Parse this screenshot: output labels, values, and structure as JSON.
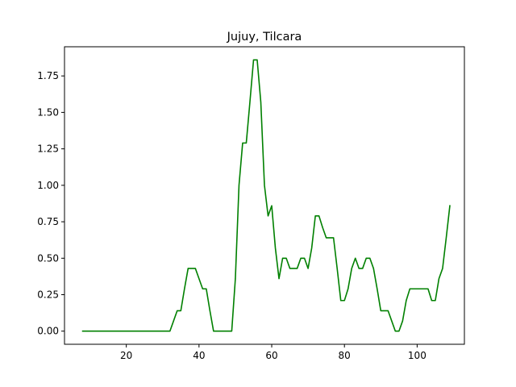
{
  "chart_data": {
    "type": "line",
    "title": "Jujuy, Tilcara",
    "xlabel": "",
    "ylabel": "",
    "xlim": [
      3,
      113
    ],
    "ylim": [
      -0.09,
      1.95
    ],
    "x_ticks": [
      20,
      40,
      60,
      80,
      100
    ],
    "y_ticks": [
      0.0,
      0.25,
      0.5,
      0.75,
      1.0,
      1.25,
      1.5,
      1.75
    ],
    "y_tick_labels": [
      "0.00",
      "0.25",
      "0.50",
      "0.75",
      "1.00",
      "1.25",
      "1.50",
      "1.75"
    ],
    "grid": false,
    "series": [
      {
        "color": "#008000",
        "x": [
          8,
          9,
          10,
          11,
          12,
          13,
          14,
          15,
          16,
          17,
          18,
          19,
          20,
          21,
          22,
          23,
          24,
          25,
          26,
          27,
          28,
          29,
          30,
          31,
          32,
          33,
          34,
          35,
          36,
          37,
          38,
          39,
          40,
          41,
          42,
          43,
          44,
          45,
          46,
          47,
          48,
          49,
          50,
          51,
          52,
          53,
          54,
          55,
          56,
          57,
          58,
          59,
          60,
          61,
          62,
          63,
          64,
          65,
          66,
          67,
          68,
          69,
          70,
          71,
          72,
          73,
          74,
          75,
          76,
          77,
          78,
          79,
          80,
          81,
          82,
          83,
          84,
          85,
          86,
          87,
          88,
          89,
          90,
          91,
          92,
          93,
          94,
          95,
          96,
          97,
          98,
          99,
          100,
          101,
          102,
          103,
          104,
          105,
          106,
          107,
          108,
          109
        ],
        "y": [
          0,
          0,
          0,
          0,
          0,
          0,
          0,
          0,
          0,
          0,
          0,
          0,
          0,
          0,
          0,
          0,
          0,
          0,
          0,
          0,
          0,
          0,
          0,
          0,
          0,
          0.07,
          0.14,
          0.14,
          0.29,
          0.43,
          0.43,
          0.43,
          0.36,
          0.29,
          0.29,
          0.14,
          0,
          0,
          0,
          0,
          0,
          0,
          0.36,
          1.0,
          1.29,
          1.29,
          1.57,
          1.86,
          1.86,
          1.57,
          1.0,
          0.79,
          0.86,
          0.57,
          0.36,
          0.5,
          0.5,
          0.43,
          0.43,
          0.43,
          0.5,
          0.5,
          0.43,
          0.57,
          0.79,
          0.79,
          0.71,
          0.64,
          0.64,
          0.64,
          0.43,
          0.21,
          0.21,
          0.29,
          0.43,
          0.5,
          0.43,
          0.43,
          0.5,
          0.5,
          0.43,
          0.29,
          0.14,
          0.14,
          0.14,
          0.07,
          0,
          0,
          0.07,
          0.21,
          0.29,
          0.29,
          0.29,
          0.29,
          0.29,
          0.29,
          0.21,
          0.21,
          0.36,
          0.43,
          0.64,
          0.86
        ]
      }
    ]
  }
}
